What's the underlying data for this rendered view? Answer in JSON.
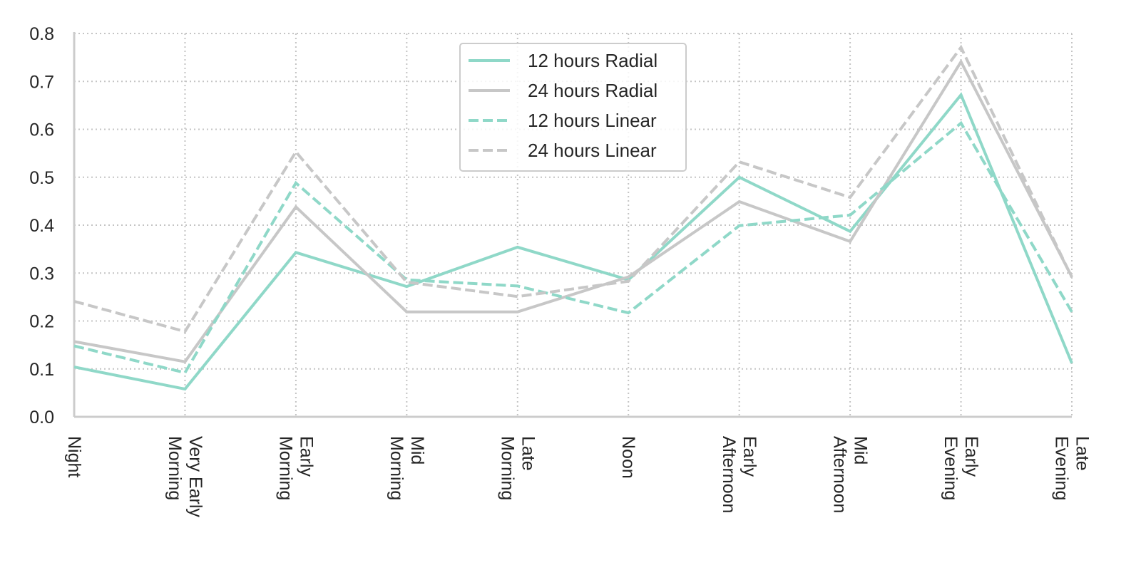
{
  "chart_data": {
    "type": "line",
    "title": "",
    "xlabel": "",
    "ylabel": "",
    "ylim": [
      0.0,
      0.8
    ],
    "grid": true,
    "legend_position": "top-center",
    "categories": [
      [
        "Night"
      ],
      [
        "Very Early",
        "Morning"
      ],
      [
        "Early",
        "Morning"
      ],
      [
        "Mid",
        "Morning"
      ],
      [
        "Late",
        "Morning"
      ],
      [
        "Noon"
      ],
      [
        "Early",
        "Afternoon"
      ],
      [
        "Mid",
        "Afternoon"
      ],
      [
        "Early",
        "Evening"
      ],
      [
        "Late",
        "Evening"
      ]
    ],
    "yticks": [
      "0.0",
      "0.1",
      "0.2",
      "0.3",
      "0.4",
      "0.5",
      "0.6",
      "0.7",
      "0.8"
    ],
    "series": [
      {
        "name": "12 hours Radial",
        "color": "#8fd8c8",
        "dash": "solid",
        "values": [
          0.104,
          0.058,
          0.343,
          0.272,
          0.354,
          0.286,
          0.5,
          0.387,
          0.672,
          0.112
        ]
      },
      {
        "name": "24 hours Radial",
        "color": "#c7c7c7",
        "dash": "solid",
        "values": [
          0.157,
          0.115,
          0.438,
          0.219,
          0.219,
          0.292,
          0.449,
          0.366,
          0.741,
          0.292
        ]
      },
      {
        "name": "12 hours Linear",
        "color": "#8fd8c8",
        "dash": "dashed",
        "values": [
          0.148,
          0.092,
          0.488,
          0.286,
          0.273,
          0.217,
          0.399,
          0.421,
          0.613,
          0.219
        ]
      },
      {
        "name": "24 hours Linear",
        "color": "#c7c7c7",
        "dash": "dashed",
        "values": [
          0.241,
          0.178,
          0.553,
          0.281,
          0.251,
          0.283,
          0.532,
          0.458,
          0.771,
          0.291
        ]
      }
    ]
  }
}
